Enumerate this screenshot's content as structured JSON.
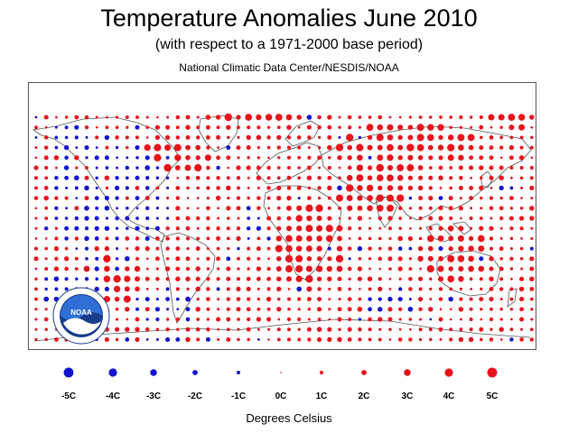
{
  "title": "Temperature Anomalies June 2010",
  "subtitle": "(with respect to a 1971-2000 base period)",
  "source": "National Climatic Data Center/NESDIS/NOAA",
  "logo_text": "NOAA",
  "legend": {
    "title": "Degrees Celsius",
    "entries": [
      {
        "label": "-5C",
        "value": -5
      },
      {
        "label": "-4C",
        "value": -4
      },
      {
        "label": "-3C",
        "value": -3
      },
      {
        "label": "-2C",
        "value": -2
      },
      {
        "label": "-1C",
        "value": -1
      },
      {
        "label": "0C",
        "value": 0
      },
      {
        "label": "1C",
        "value": 1
      },
      {
        "label": "2C",
        "value": 2
      },
      {
        "label": "3C",
        "value": 3
      },
      {
        "label": "4C",
        "value": 4
      },
      {
        "label": "5C",
        "value": 5
      }
    ]
  },
  "colors": {
    "warm": "#e8141c",
    "cold": "#1414d0",
    "coastline": "#555555"
  }
}
